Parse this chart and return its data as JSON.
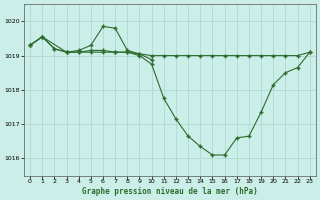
{
  "title": "Graphe pression niveau de la mer (hPa)",
  "bg_color": "#cceee8",
  "grid_color": "#aad4cc",
  "line_color": "#2d6b2d",
  "xlim": [
    -0.5,
    23.5
  ],
  "ylim": [
    1015.5,
    1020.5
  ],
  "yticks": [
    1016,
    1017,
    1018,
    1019,
    1020
  ],
  "xticks": [
    0,
    1,
    2,
    3,
    4,
    5,
    6,
    7,
    8,
    9,
    10,
    11,
    12,
    13,
    14,
    15,
    16,
    17,
    18,
    19,
    20,
    21,
    22,
    23
  ],
  "series_straight": {
    "x": [
      0,
      1,
      2,
      3,
      4,
      5,
      6,
      7,
      8,
      9,
      10,
      11,
      12,
      13,
      14,
      15,
      16,
      17,
      18,
      19,
      20,
      21,
      22,
      23
    ],
    "y": [
      1019.3,
      1019.55,
      1019.2,
      1019.1,
      1019.1,
      1019.1,
      1019.1,
      1019.1,
      1019.1,
      1019.05,
      1019.0,
      1019.0,
      1019.0,
      1019.0,
      1019.0,
      1019.0,
      1019.0,
      1019.0,
      1019.0,
      1019.0,
      1019.0,
      1019.0,
      1019.0,
      1019.1
    ]
  },
  "series_hump": {
    "x": [
      0,
      1,
      3,
      4,
      5,
      6,
      7,
      8,
      9,
      10
    ],
    "y": [
      1019.3,
      1019.55,
      1019.1,
      1019.15,
      1019.3,
      1019.85,
      1019.8,
      1019.15,
      1019.05,
      1018.88
    ]
  },
  "series_dip": {
    "x": [
      0,
      1,
      2,
      3,
      4,
      5,
      6,
      7,
      8,
      9,
      10,
      11,
      12,
      13,
      14,
      15,
      16,
      17,
      18,
      19,
      20,
      21,
      22,
      23
    ],
    "y": [
      1019.3,
      1019.55,
      1019.2,
      1019.1,
      1019.1,
      1019.15,
      1019.15,
      1019.1,
      1019.1,
      1019.0,
      1018.75,
      1017.75,
      1017.15,
      1016.65,
      1016.35,
      1016.1,
      1016.1,
      1016.6,
      1016.65,
      1017.35,
      1018.15,
      1018.5,
      1018.65,
      1019.1
    ]
  }
}
